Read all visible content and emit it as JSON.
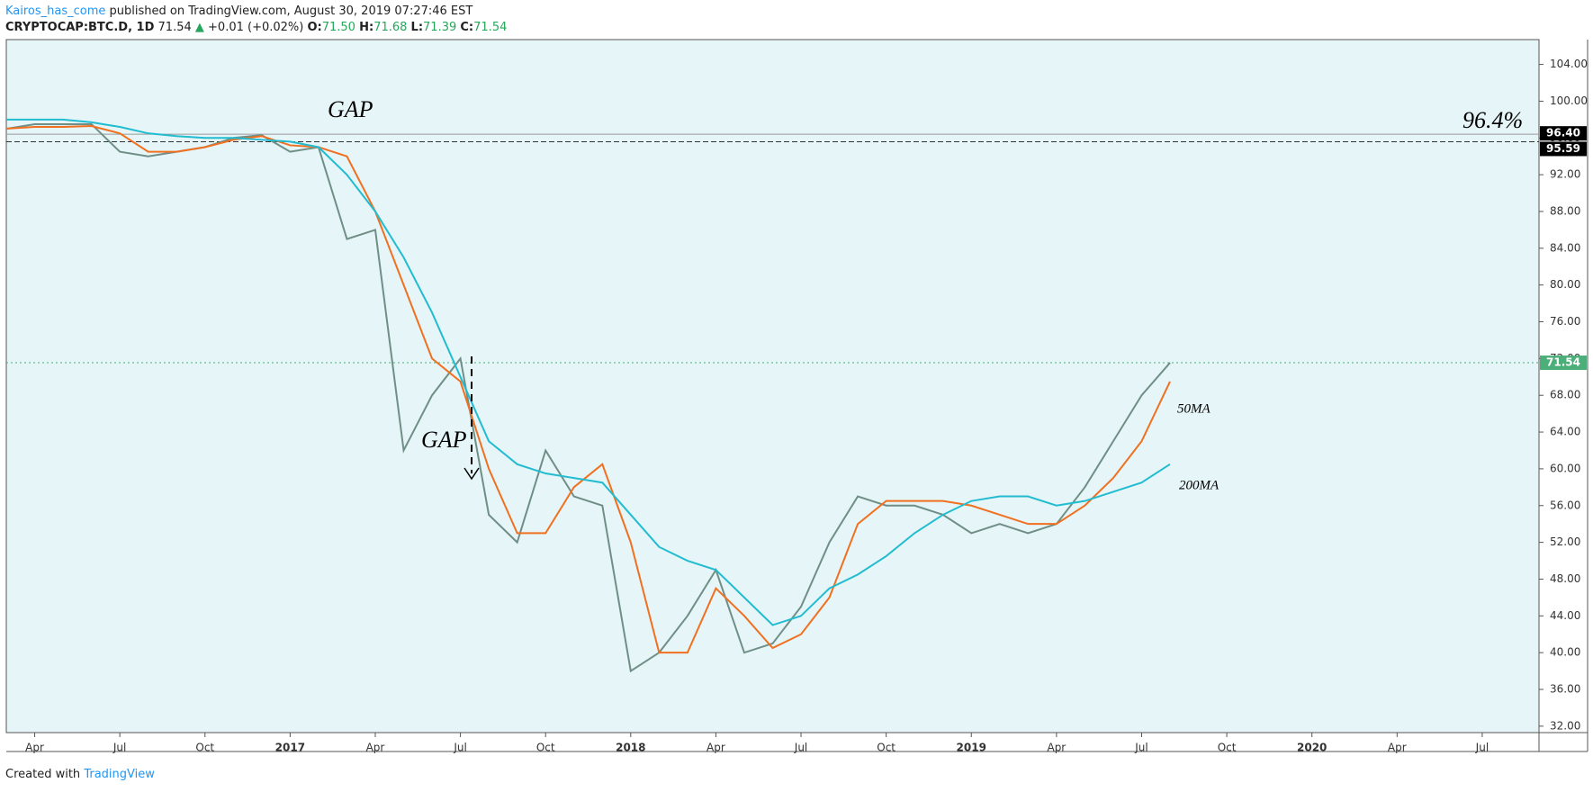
{
  "header": {
    "author": "Kairos_has_come",
    "published": "published on TradingView.com, August 30, 2019 07:27:46 EST",
    "symbol": "CRYPTOCAP:BTC.D, 1D",
    "last": "71.54",
    "arrow": "▲",
    "change": "+0.01 (+0.02%)",
    "o_label": "O:",
    "o": "71.50",
    "h_label": "H:",
    "h": "71.68",
    "l_label": "L:",
    "l": "71.39",
    "c_label": "C:",
    "c": "71.54"
  },
  "footer": {
    "prefix": "Created with",
    "brand": "TradingView"
  },
  "chart_data": {
    "type": "line",
    "x": [
      "2016-03",
      "2016-04",
      "2016-05",
      "2016-06",
      "2016-07",
      "2016-08",
      "2016-09",
      "2016-10",
      "2016-11",
      "2016-12",
      "2017-01",
      "2017-02",
      "2017-03",
      "2017-04",
      "2017-05",
      "2017-06",
      "2017-07",
      "2017-08",
      "2017-09",
      "2017-10",
      "2017-11",
      "2017-12",
      "2018-01",
      "2018-02",
      "2018-03",
      "2018-04",
      "2018-05",
      "2018-06",
      "2018-07",
      "2018-08",
      "2018-09",
      "2018-10",
      "2018-11",
      "2018-12",
      "2019-01",
      "2019-02",
      "2019-03",
      "2019-04",
      "2019-05",
      "2019-06",
      "2019-07",
      "2019-08"
    ],
    "series": [
      {
        "name": "BTC.D",
        "color": "#6f8f86",
        "values": [
          97,
          97.5,
          97.5,
          97.5,
          94.5,
          94,
          94.5,
          95,
          96,
          96.3,
          94.5,
          95,
          85,
          86,
          62,
          68,
          72,
          55,
          52,
          62,
          57,
          56,
          38,
          40,
          44,
          49,
          40,
          41,
          45,
          52,
          57,
          56,
          56,
          55,
          53,
          54,
          53,
          54,
          58,
          63,
          68,
          71.54
        ]
      },
      {
        "name": "50MA",
        "color": "#f07020",
        "values": [
          97,
          97.2,
          97.2,
          97.3,
          96.5,
          94.5,
          94.5,
          95,
          95.8,
          96.2,
          95.2,
          95,
          94,
          88,
          80,
          72,
          69.5,
          60,
          53,
          53,
          58,
          60.5,
          52,
          40,
          40,
          47,
          44,
          40.5,
          42,
          46,
          54,
          56.5,
          56.5,
          56.5,
          56,
          55,
          54,
          54,
          56,
          59,
          63,
          69.5
        ]
      },
      {
        "name": "200MA",
        "color": "#22bcd0",
        "values": [
          98,
          98,
          98,
          97.7,
          97.2,
          96.5,
          96.2,
          96,
          96,
          95.8,
          95.6,
          95,
          92,
          88,
          83,
          77,
          70,
          63,
          60.5,
          59.5,
          59,
          58.5,
          55,
          51.5,
          50,
          49,
          46,
          43,
          44,
          47,
          48.5,
          50.5,
          53,
          55,
          56.5,
          57,
          57,
          56,
          56.5,
          57.5,
          58.5,
          60.5
        ]
      }
    ],
    "xlim": [
      "2016-03",
      "2020-09"
    ],
    "xticks": [
      {
        "value": "2016-04",
        "label": "Apr"
      },
      {
        "value": "2016-07",
        "label": "Jul"
      },
      {
        "value": "2016-10",
        "label": "Oct"
      },
      {
        "value": "2017-01",
        "label": "2017"
      },
      {
        "value": "2017-04",
        "label": "Apr"
      },
      {
        "value": "2017-07",
        "label": "Jul"
      },
      {
        "value": "2017-10",
        "label": "Oct"
      },
      {
        "value": "2018-01",
        "label": "2018"
      },
      {
        "value": "2018-04",
        "label": "Apr"
      },
      {
        "value": "2018-07",
        "label": "Jul"
      },
      {
        "value": "2018-10",
        "label": "Oct"
      },
      {
        "value": "2019-01",
        "label": "2019"
      },
      {
        "value": "2019-04",
        "label": "Apr"
      },
      {
        "value": "2019-07",
        "label": "Jul"
      },
      {
        "value": "2019-10",
        "label": "Oct"
      },
      {
        "value": "2020-01",
        "label": "2020"
      },
      {
        "value": "2020-04",
        "label": "Apr"
      },
      {
        "value": "2020-07",
        "label": "Jul"
      }
    ],
    "ylim": [
      31.3,
      106.7
    ],
    "yticks": [
      {
        "value": 32,
        "label": "32.00"
      },
      {
        "value": 36,
        "label": "36.00"
      },
      {
        "value": 40,
        "label": "40.00"
      },
      {
        "value": 44,
        "label": "44.00"
      },
      {
        "value": 48,
        "label": "48.00"
      },
      {
        "value": 52,
        "label": "52.00"
      },
      {
        "value": 56,
        "label": "56.00"
      },
      {
        "value": 60,
        "label": "60.00"
      },
      {
        "value": 64,
        "label": "64.00"
      },
      {
        "value": 68,
        "label": "68.00"
      },
      {
        "value": 72,
        "label": "72.00"
      },
      {
        "value": 76,
        "label": "76.00"
      },
      {
        "value": 80,
        "label": "80.00"
      },
      {
        "value": 84,
        "label": "84.00"
      },
      {
        "value": 88,
        "label": "88.00"
      },
      {
        "value": 92,
        "label": "92.00"
      },
      {
        "value": 96,
        "label": "96.00"
      },
      {
        "value": 100,
        "label": "100.00"
      },
      {
        "value": 104,
        "label": "104.00"
      }
    ],
    "levels": [
      {
        "value": 96.4,
        "label": "96.40",
        "color": "#000000"
      },
      {
        "value": 95.59,
        "label": "95.59",
        "color": "#000000"
      }
    ],
    "last_price": {
      "value": 71.54,
      "label": "71.54",
      "color": "#4caf7a"
    },
    "annotations": [
      "GAP",
      "GAP",
      "96.4%",
      "50MA",
      "200MA"
    ]
  }
}
